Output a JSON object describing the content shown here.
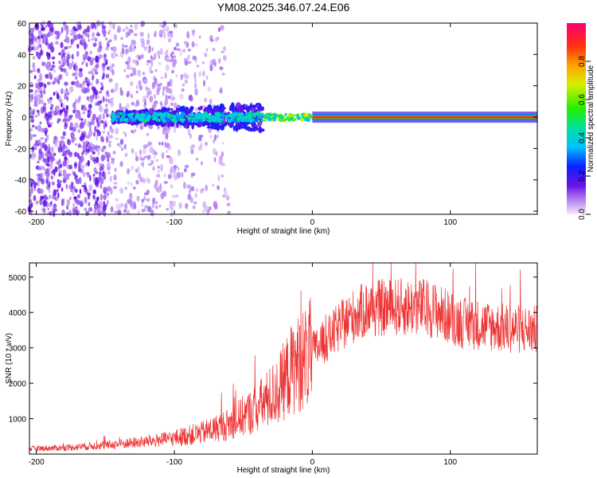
{
  "title": "YM08.2025.346.07.24.E06",
  "chart_data": [
    {
      "type": "heatmap",
      "name": "spectrogram",
      "xlabel": "Height of straight line (km)",
      "ylabel": "Frequency (Hz)",
      "xlim": [
        -205,
        163
      ],
      "ylim": [
        -62,
        60
      ],
      "xticks": [
        "-200",
        "-100",
        "0",
        "100"
      ],
      "yticks": [
        "-60",
        "-40",
        "-20",
        "0",
        "20",
        "40",
        "60"
      ],
      "colorbar": {
        "label": "Normalized spectral amplitude",
        "range": [
          0,
          1
        ],
        "ticks": [
          "0.0",
          "0.2",
          "0.4",
          "0.6",
          "0.8"
        ]
      },
      "description_points": [
        {
          "x_range": [
            -205,
            -100
          ],
          "level": 0.1,
          "note": "diffuse noise across all frequencies"
        },
        {
          "x_range": [
            -145,
            -35
          ],
          "freq": 0,
          "level": 0.3
        },
        {
          "x_range": [
            -35,
            0
          ],
          "freq": 0,
          "level": 0.6
        },
        {
          "x_range": [
            0,
            163
          ],
          "freq": 0,
          "level": 1.0
        }
      ]
    },
    {
      "type": "line",
      "name": "snr",
      "xlabel": "Height of straight line (km)",
      "ylabel": "SNR (10 * v/v)",
      "xlim": [
        -205,
        163
      ],
      "ylim": [
        0,
        5400
      ],
      "xticks": [
        "-200",
        "-100",
        "0",
        "100"
      ],
      "yticks": [
        "1000",
        "2000",
        "3000",
        "4000",
        "5000"
      ],
      "color": "#ee3333",
      "series": [
        {
          "name": "SNR",
          "trend_x": [
            -205,
            -180,
            -150,
            -120,
            -100,
            -80,
            -60,
            -40,
            -25,
            -15,
            0,
            10,
            20,
            30,
            40,
            60,
            80,
            90,
            100,
            110,
            120,
            140,
            163
          ],
          "trend_y": [
            150,
            180,
            250,
            350,
            450,
            600,
            850,
            1300,
            1800,
            2400,
            2900,
            3200,
            3600,
            3900,
            4100,
            4150,
            4150,
            4050,
            3850,
            3700,
            3650,
            3550,
            3500
          ]
        }
      ]
    }
  ]
}
